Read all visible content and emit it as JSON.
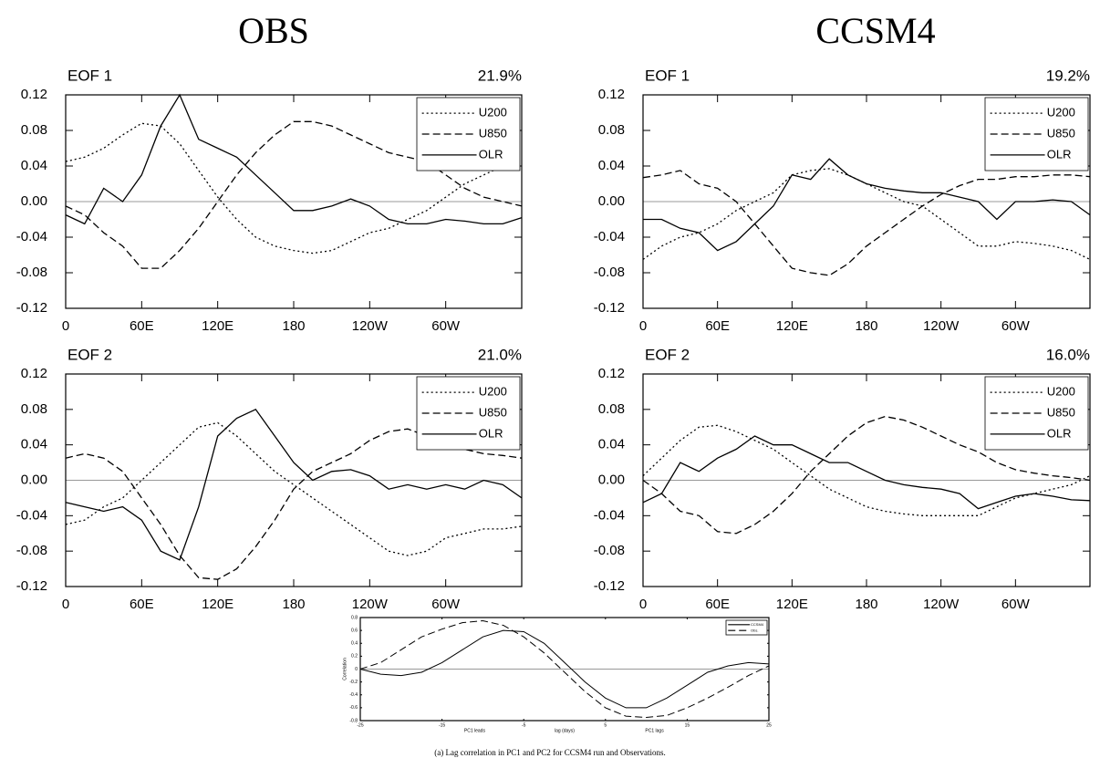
{
  "column_titles": [
    "OBS",
    "CCSM4"
  ],
  "caption": "(a) Lag correlation in PC1 and PC2 for CCSM4 run and Observations.",
  "chart_data": [
    {
      "type": "line",
      "title": "EOF 1",
      "subtitle": "21.9%",
      "legend": "upper right",
      "x": [
        0,
        15,
        30,
        45,
        60,
        75,
        90,
        105,
        120,
        135,
        150,
        165,
        180,
        195,
        210,
        225,
        240,
        255,
        270,
        285,
        300,
        315,
        330,
        345,
        360
      ],
      "xlim": [
        0,
        360
      ],
      "xticks": [
        0,
        {
          "value": 60,
          "label": "60E"
        },
        {
          "value": 120,
          "label": "120E"
        },
        180,
        {
          "value": 240,
          "label": "120W"
        },
        {
          "value": 300,
          "label": "60W"
        }
      ],
      "ylim": [
        -0.12,
        0.12
      ],
      "yticks": [
        0.12,
        0.08,
        0.04,
        {
          "value": 0,
          "label": "0.00"
        },
        -0.04,
        -0.08,
        -0.12
      ],
      "series": [
        {
          "name": "U200",
          "color": "#000000",
          "style": "dotted",
          "values": [
            0.045,
            0.05,
            0.06,
            0.075,
            0.088,
            0.085,
            0.065,
            0.035,
            0.005,
            -0.02,
            -0.04,
            -0.05,
            -0.055,
            -0.058,
            -0.055,
            -0.045,
            -0.035,
            -0.03,
            -0.02,
            -0.01,
            0.005,
            0.02,
            0.03,
            0.04,
            0.045
          ]
        },
        {
          "name": "U850",
          "color": "#000000",
          "style": "dashed",
          "values": [
            -0.005,
            -0.015,
            -0.035,
            -0.05,
            -0.075,
            -0.075,
            -0.055,
            -0.03,
            0.0,
            0.03,
            0.055,
            0.075,
            0.09,
            0.09,
            0.085,
            0.075,
            0.065,
            0.055,
            0.05,
            0.045,
            0.03,
            0.015,
            0.005,
            0.0,
            -0.005
          ]
        },
        {
          "name": "OLR",
          "color": "#000000",
          "style": "solid",
          "values": [
            -0.015,
            -0.025,
            0.015,
            0.0,
            0.03,
            0.085,
            0.12,
            0.07,
            0.06,
            0.05,
            0.03,
            0.01,
            -0.01,
            -0.01,
            -0.005,
            0.003,
            -0.005,
            -0.02,
            -0.025,
            -0.025,
            -0.02,
            -0.022,
            -0.025,
            -0.025,
            -0.018
          ]
        }
      ]
    },
    {
      "type": "line",
      "title": "EOF 2",
      "subtitle": "21.0%",
      "legend": "upper right",
      "x": [
        0,
        15,
        30,
        45,
        60,
        75,
        90,
        105,
        120,
        135,
        150,
        165,
        180,
        195,
        210,
        225,
        240,
        255,
        270,
        285,
        300,
        315,
        330,
        345,
        360
      ],
      "xlim": [
        0,
        360
      ],
      "xticks": [
        0,
        {
          "value": 60,
          "label": "60E"
        },
        {
          "value": 120,
          "label": "120E"
        },
        180,
        {
          "value": 240,
          "label": "120W"
        },
        {
          "value": 300,
          "label": "60W"
        }
      ],
      "ylim": [
        -0.12,
        0.12
      ],
      "yticks": [
        0.12,
        0.08,
        0.04,
        {
          "value": 0,
          "label": "0.00"
        },
        -0.04,
        -0.08,
        -0.12
      ],
      "series": [
        {
          "name": "U200",
          "color": "#000000",
          "style": "dotted",
          "values": [
            -0.05,
            -0.045,
            -0.03,
            -0.02,
            0.0,
            0.02,
            0.04,
            0.06,
            0.065,
            0.05,
            0.03,
            0.01,
            -0.005,
            -0.02,
            -0.035,
            -0.05,
            -0.065,
            -0.08,
            -0.085,
            -0.08,
            -0.065,
            -0.06,
            -0.055,
            -0.055,
            -0.052
          ]
        },
        {
          "name": "U850",
          "color": "#000000",
          "style": "dashed",
          "values": [
            0.025,
            0.03,
            0.025,
            0.01,
            -0.02,
            -0.05,
            -0.085,
            -0.11,
            -0.112,
            -0.1,
            -0.075,
            -0.045,
            -0.01,
            0.01,
            0.02,
            0.03,
            0.045,
            0.055,
            0.058,
            0.05,
            0.04,
            0.035,
            0.03,
            0.028,
            0.025
          ]
        },
        {
          "name": "OLR",
          "color": "#000000",
          "style": "solid",
          "values": [
            -0.025,
            -0.03,
            -0.035,
            -0.03,
            -0.045,
            -0.08,
            -0.09,
            -0.03,
            0.05,
            0.07,
            0.08,
            0.05,
            0.02,
            0.0,
            0.01,
            0.012,
            0.005,
            -0.01,
            -0.005,
            -0.01,
            -0.005,
            -0.01,
            0.0,
            -0.005,
            -0.02
          ]
        }
      ]
    },
    {
      "type": "line",
      "title": "EOF 1",
      "subtitle": "19.2%",
      "legend": "upper right",
      "x": [
        0,
        15,
        30,
        45,
        60,
        75,
        90,
        105,
        120,
        135,
        150,
        165,
        180,
        195,
        210,
        225,
        240,
        255,
        270,
        285,
        300,
        315,
        330,
        345,
        360
      ],
      "xlim": [
        0,
        360
      ],
      "xticks": [
        0,
        {
          "value": 60,
          "label": "60E"
        },
        {
          "value": 120,
          "label": "120E"
        },
        180,
        {
          "value": 240,
          "label": "120W"
        },
        {
          "value": 300,
          "label": "60W"
        }
      ],
      "ylim": [
        -0.12,
        0.12
      ],
      "yticks": [
        0.12,
        0.08,
        0.04,
        {
          "value": 0,
          "label": "0.00"
        },
        -0.04,
        -0.08,
        -0.12
      ],
      "series": [
        {
          "name": "U200",
          "color": "#000000",
          "style": "dotted",
          "values": [
            -0.065,
            -0.05,
            -0.04,
            -0.035,
            -0.025,
            -0.01,
            0.0,
            0.01,
            0.03,
            0.035,
            0.037,
            0.03,
            0.02,
            0.01,
            0.0,
            -0.005,
            -0.02,
            -0.035,
            -0.05,
            -0.05,
            -0.045,
            -0.047,
            -0.05,
            -0.055,
            -0.065
          ]
        },
        {
          "name": "U850",
          "color": "#000000",
          "style": "dashed",
          "values": [
            0.027,
            0.03,
            0.035,
            0.02,
            0.015,
            0.0,
            -0.025,
            -0.05,
            -0.075,
            -0.08,
            -0.083,
            -0.07,
            -0.05,
            -0.035,
            -0.02,
            -0.005,
            0.008,
            0.018,
            0.025,
            0.025,
            0.028,
            0.028,
            0.03,
            0.03,
            0.028
          ]
        },
        {
          "name": "OLR",
          "color": "#000000",
          "style": "solid",
          "values": [
            -0.02,
            -0.02,
            -0.03,
            -0.035,
            -0.055,
            -0.045,
            -0.025,
            -0.005,
            0.03,
            0.025,
            0.048,
            0.03,
            0.02,
            0.015,
            0.012,
            0.01,
            0.01,
            0.005,
            0.0,
            -0.02,
            0.0,
            0.0,
            0.002,
            0.0,
            -0.015
          ]
        }
      ]
    },
    {
      "type": "line",
      "title": "EOF 2",
      "subtitle": "16.0%",
      "legend": "upper right",
      "x": [
        0,
        15,
        30,
        45,
        60,
        75,
        90,
        105,
        120,
        135,
        150,
        165,
        180,
        195,
        210,
        225,
        240,
        255,
        270,
        285,
        300,
        315,
        330,
        345,
        360
      ],
      "xlim": [
        0,
        360
      ],
      "xticks": [
        0,
        {
          "value": 60,
          "label": "60E"
        },
        {
          "value": 120,
          "label": "120E"
        },
        180,
        {
          "value": 240,
          "label": "120W"
        },
        {
          "value": 300,
          "label": "60W"
        }
      ],
      "ylim": [
        -0.12,
        0.12
      ],
      "yticks": [
        0.12,
        0.08,
        0.04,
        {
          "value": 0,
          "label": "0.00"
        },
        -0.04,
        -0.08,
        -0.12
      ],
      "series": [
        {
          "name": "U200",
          "color": "#000000",
          "style": "dotted",
          "values": [
            0.005,
            0.025,
            0.045,
            0.06,
            0.062,
            0.055,
            0.045,
            0.035,
            0.02,
            0.005,
            -0.01,
            -0.02,
            -0.03,
            -0.035,
            -0.038,
            -0.04,
            -0.04,
            -0.04,
            -0.04,
            -0.03,
            -0.02,
            -0.015,
            -0.01,
            -0.005,
            0.005
          ]
        },
        {
          "name": "U850",
          "color": "#000000",
          "style": "dashed",
          "values": [
            0.0,
            -0.015,
            -0.035,
            -0.04,
            -0.058,
            -0.06,
            -0.05,
            -0.035,
            -0.015,
            0.01,
            0.03,
            0.05,
            0.065,
            0.072,
            0.068,
            0.06,
            0.05,
            0.04,
            0.032,
            0.02,
            0.012,
            0.008,
            0.005,
            0.003,
            0.0
          ]
        },
        {
          "name": "OLR",
          "color": "#000000",
          "style": "solid",
          "values": [
            -0.025,
            -0.015,
            0.02,
            0.01,
            0.025,
            0.035,
            0.05,
            0.04,
            0.04,
            0.03,
            0.02,
            0.02,
            0.01,
            0.0,
            -0.005,
            -0.008,
            -0.01,
            -0.015,
            -0.032,
            -0.025,
            -0.018,
            -0.015,
            -0.018,
            -0.022,
            -0.023
          ]
        }
      ]
    },
    {
      "type": "line",
      "ylabel": "Correlation",
      "xlabel": "lag (days)",
      "annotations": [
        "PC1 leads",
        "PC1 lags"
      ],
      "legend": "upper right",
      "x": [
        -25,
        -22.5,
        -20,
        -17.5,
        -15,
        -12.5,
        -10,
        -7.5,
        -5,
        -2.5,
        0,
        2.5,
        5,
        7.5,
        10,
        12.5,
        15,
        17.5,
        20,
        22.5,
        25
      ],
      "xlim": [
        -25,
        25
      ],
      "xticks": [
        -25,
        -15,
        -5,
        5,
        15,
        25
      ],
      "ylim": [
        -0.8,
        0.8
      ],
      "yticks": [
        0.8,
        0.6,
        0.4,
        0.2,
        0,
        -0.2,
        -0.4,
        -0.6,
        -0.8
      ],
      "series": [
        {
          "name": "CCSM4",
          "color": "#000000",
          "style": "solid",
          "values": [
            0.0,
            -0.08,
            -0.1,
            -0.05,
            0.1,
            0.3,
            0.5,
            0.6,
            0.58,
            0.4,
            0.1,
            -0.2,
            -0.45,
            -0.6,
            -0.6,
            -0.45,
            -0.25,
            -0.05,
            0.05,
            0.1,
            0.08
          ]
        },
        {
          "name": "Obs.",
          "color": "#000000",
          "style": "dashed",
          "values": [
            0.0,
            0.1,
            0.3,
            0.5,
            0.62,
            0.72,
            0.75,
            0.68,
            0.5,
            0.25,
            -0.05,
            -0.35,
            -0.6,
            -0.73,
            -0.75,
            -0.72,
            -0.6,
            -0.45,
            -0.28,
            -0.1,
            0.05
          ]
        }
      ]
    }
  ]
}
